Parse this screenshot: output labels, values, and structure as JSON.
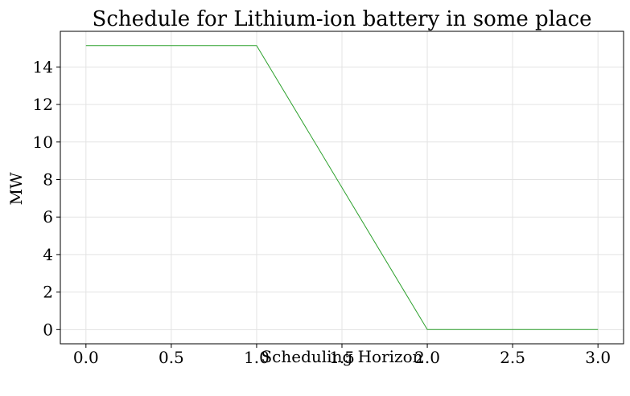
{
  "chart_data": {
    "type": "line",
    "title": "Schedule for Lithium-ion battery in some place",
    "xlabel": "Scheduling Horizon",
    "ylabel": "MW",
    "xlim": [
      -0.15,
      3.15
    ],
    "ylim": [
      -0.757,
      15.9
    ],
    "xticks": [
      0.0,
      0.5,
      1.0,
      1.5,
      2.0,
      2.5,
      3.0
    ],
    "xtick_labels": [
      "0.0",
      "0.5",
      "1.0",
      "1.5",
      "2.0",
      "2.5",
      "3.0"
    ],
    "yticks": [
      0,
      2,
      4,
      6,
      8,
      10,
      12,
      14
    ],
    "ytick_labels": [
      "0",
      "2",
      "4",
      "6",
      "8",
      "10",
      "12",
      "14"
    ],
    "grid": true,
    "series": [
      {
        "x": [
          0.0,
          1.0,
          2.0,
          3.0
        ],
        "y": [
          15.14,
          15.14,
          0.0,
          0.0
        ],
        "color": "#2ca02c"
      }
    ]
  }
}
